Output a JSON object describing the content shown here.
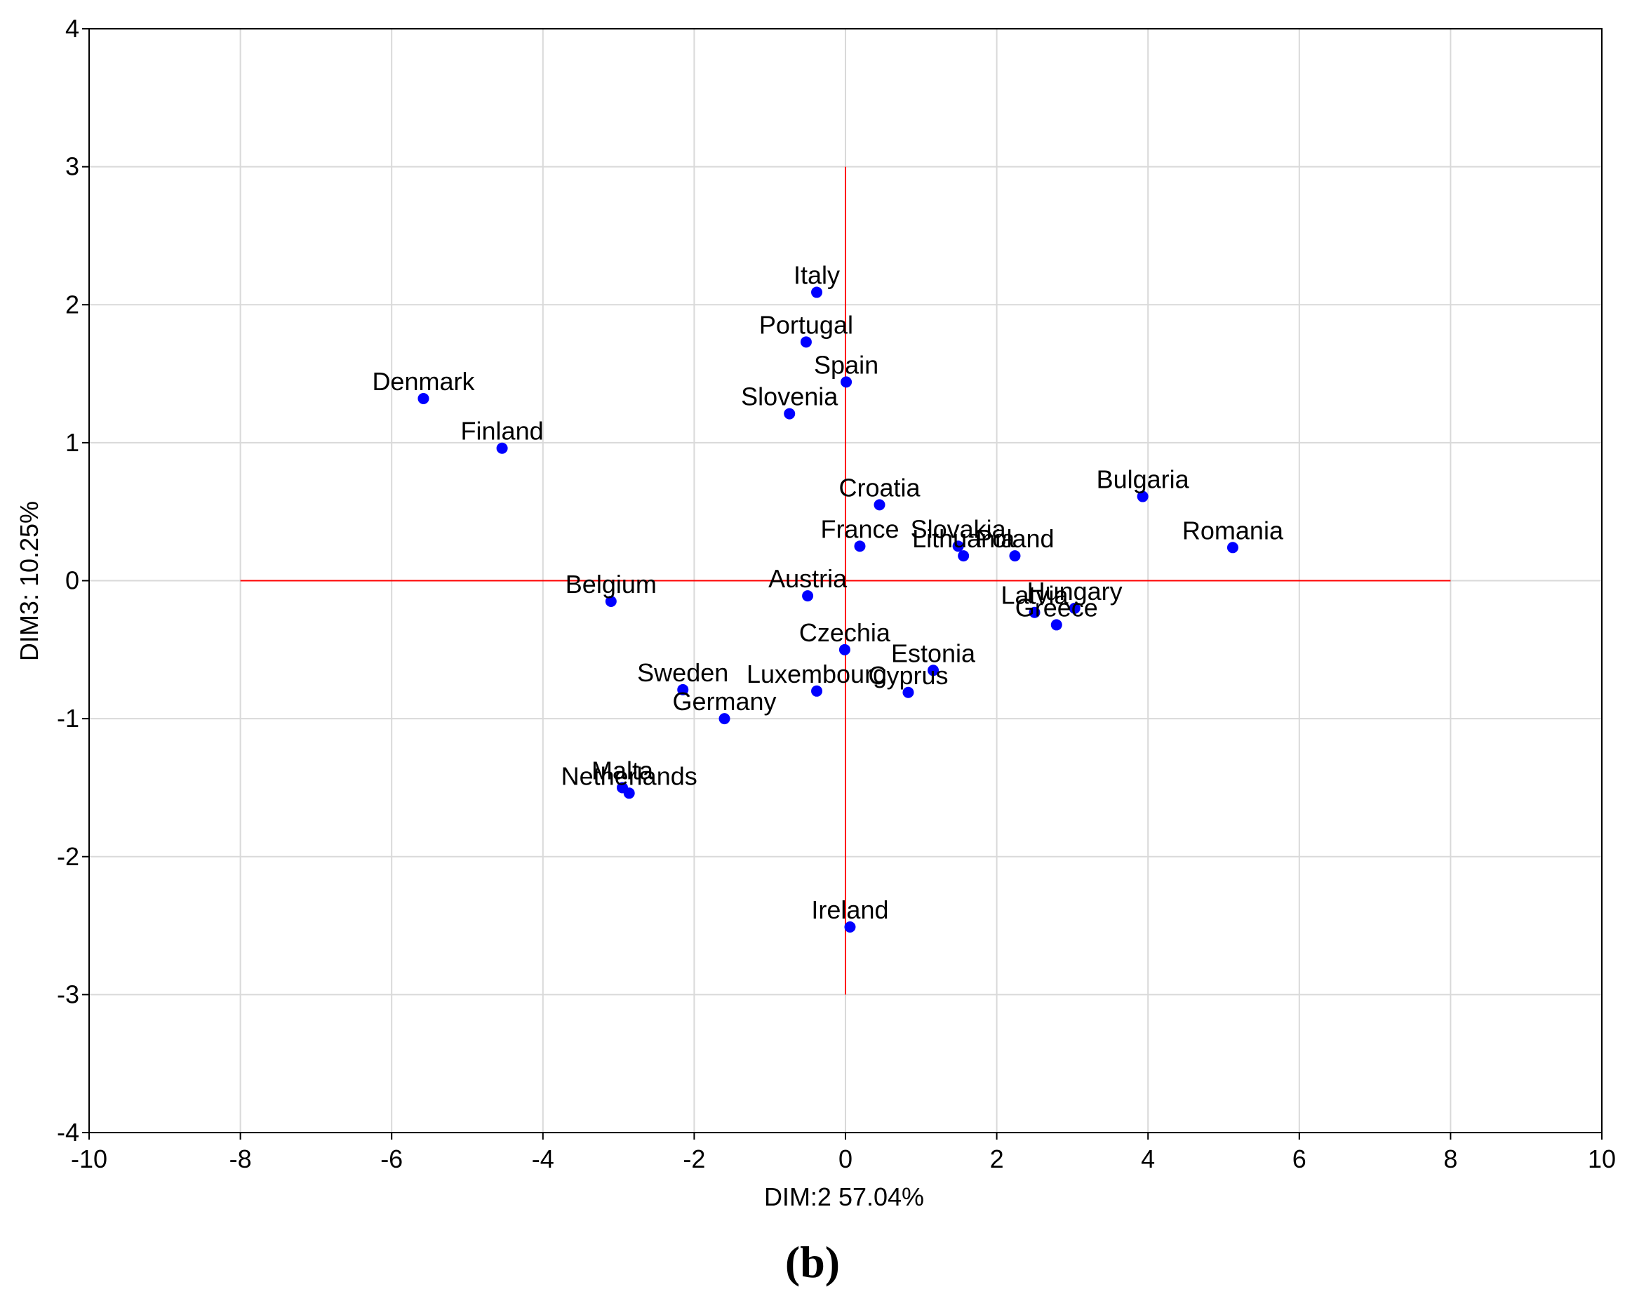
{
  "chart_data": {
    "type": "scatter",
    "xlabel": "DIM:2 57.04%",
    "ylabel": "DIM3: 10.25%",
    "xlim": [
      -10,
      10
    ],
    "ylim": [
      -4,
      4
    ],
    "xticks": [
      -10,
      -8,
      -6,
      -4,
      -2,
      0,
      2,
      4,
      6,
      8,
      10
    ],
    "yticks": [
      -4,
      -3,
      -2,
      -1,
      0,
      1,
      2,
      3,
      4
    ],
    "grid": true,
    "panel_label": "(b)",
    "reference_lines": {
      "horizontal": {
        "y": 0,
        "x_from": -8,
        "x_to": 8,
        "color": "#ff0000"
      },
      "vertical": {
        "x": 0,
        "y_from": -3,
        "y_to": 3,
        "color": "#ff0000"
      }
    },
    "point_color": "#0000ff",
    "points": [
      {
        "label": "Italy",
        "x": -0.38,
        "y": 2.09
      },
      {
        "label": "Portugal",
        "x": -0.52,
        "y": 1.73
      },
      {
        "label": "Spain",
        "x": 0.01,
        "y": 1.44
      },
      {
        "label": "Slovenia",
        "x": -0.74,
        "y": 1.21
      },
      {
        "label": "Denmark",
        "x": -5.58,
        "y": 1.32
      },
      {
        "label": "Finland",
        "x": -4.54,
        "y": 0.96
      },
      {
        "label": "Bulgaria",
        "x": 3.93,
        "y": 0.61
      },
      {
        "label": "Croatia",
        "x": 0.45,
        "y": 0.55
      },
      {
        "label": "Slovakia",
        "x": 1.49,
        "y": 0.25
      },
      {
        "label": "Lithuania",
        "x": 1.56,
        "y": 0.18
      },
      {
        "label": "France",
        "x": 0.19,
        "y": 0.25
      },
      {
        "label": "Poland",
        "x": 2.24,
        "y": 0.18
      },
      {
        "label": "Romania",
        "x": 5.12,
        "y": 0.24
      },
      {
        "label": "Austria",
        "x": -0.5,
        "y": -0.11
      },
      {
        "label": "Belgium",
        "x": -3.1,
        "y": -0.15
      },
      {
        "label": "Latvia",
        "x": 2.5,
        "y": -0.23
      },
      {
        "label": "Hungary",
        "x": 3.03,
        "y": -0.2
      },
      {
        "label": "Greece",
        "x": 2.79,
        "y": -0.32
      },
      {
        "label": "Czechia",
        "x": -0.01,
        "y": -0.5
      },
      {
        "label": "Estonia",
        "x": 1.16,
        "y": -0.65
      },
      {
        "label": "Sweden",
        "x": -2.15,
        "y": -0.79
      },
      {
        "label": "Luxembourg",
        "x": -0.38,
        "y": -0.8
      },
      {
        "label": "Cyprus",
        "x": 0.83,
        "y": -0.81
      },
      {
        "label": "Germany",
        "x": -1.6,
        "y": -1.0
      },
      {
        "label": "Malta",
        "x": -2.95,
        "y": -1.5
      },
      {
        "label": "Netherlands",
        "x": -2.86,
        "y": -1.54
      },
      {
        "label": "Ireland",
        "x": 0.06,
        "y": -2.51
      }
    ]
  }
}
